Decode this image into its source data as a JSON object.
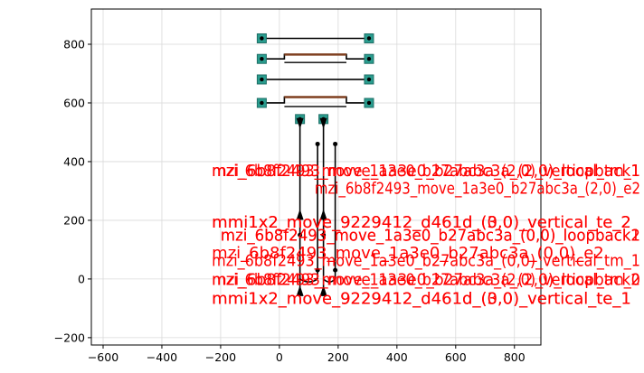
{
  "chart_data": {
    "type": "scatter",
    "title": "",
    "xlabel": "",
    "ylabel": "",
    "xlim": [
      -640,
      890
    ],
    "ylim": [
      -225,
      920
    ],
    "grid": true,
    "x_ticks": [
      -600,
      -400,
      -200,
      0,
      200,
      400,
      600,
      800
    ],
    "y_ticks": [
      -200,
      0,
      200,
      400,
      600,
      800
    ],
    "x_tick_labels": [
      "−600",
      "−400",
      "−200",
      "0",
      "200",
      "400",
      "600",
      "800"
    ],
    "y_tick_labels": [
      "−200",
      "0",
      "200",
      "400",
      "600",
      "800"
    ],
    "colors": {
      "grid": "#d9d9d9",
      "axis": "#000000",
      "waveguide": "#000000",
      "waveguide_fill": "#7f3f1f",
      "port_pad": "#2a9d8f",
      "port_pad_edge": "#1f6f66",
      "label": "#ff0000",
      "marker": "#000000",
      "zero_line": "#bfbfbf"
    },
    "structures": {
      "pads_left": [
        {
          "x": -60,
          "y": 820
        },
        {
          "x": -60,
          "y": 750
        },
        {
          "x": -60,
          "y": 680
        },
        {
          "x": -60,
          "y": 600
        }
      ],
      "pads_right": [
        {
          "x": 305,
          "y": 820
        },
        {
          "x": 305,
          "y": 750
        },
        {
          "x": 305,
          "y": 680
        },
        {
          "x": 305,
          "y": 600
        }
      ],
      "pads_bottom_top": [
        {
          "x": 70,
          "y": 545
        },
        {
          "x": 150,
          "y": 545
        }
      ],
      "loops": [
        {
          "x1": -60,
          "x2": 305,
          "y": 820,
          "dy": 0
        },
        {
          "x1": -60,
          "x2": 305,
          "y": 750,
          "dy": 15
        },
        {
          "x1": -60,
          "x2": 305,
          "y": 680,
          "dy": 0
        },
        {
          "x1": -60,
          "x2": 305,
          "y": 600,
          "dy": 20
        }
      ],
      "vertical_runs": [
        {
          "x": 70,
          "y1": 545,
          "y2": -40
        },
        {
          "x": 150,
          "y1": 545,
          "y2": -40
        },
        {
          "x": 130,
          "y1": 460,
          "y2": 0
        },
        {
          "x": 190,
          "y1": 460,
          "y2": 0
        }
      ],
      "arrows_down": [
        {
          "x": 70,
          "y": 530
        },
        {
          "x": 150,
          "y": 530
        }
      ],
      "arrows_up": [
        {
          "x": 70,
          "y": 220
        },
        {
          "x": 150,
          "y": 220
        },
        {
          "x": 70,
          "y": -40
        },
        {
          "x": 150,
          "y": -40
        }
      ],
      "dots": [
        {
          "x": 130,
          "y": 460
        },
        {
          "x": 190,
          "y": 460
        },
        {
          "x": 70,
          "y": 150
        },
        {
          "x": 150,
          "y": 150
        },
        {
          "x": 130,
          "y": 30
        },
        {
          "x": 190,
          "y": 30
        }
      ]
    },
    "labels": [
      {
        "text": "mzi_6b8f2493_move_1a3e0_b27abc3a_(2,0)_loopback1",
        "x": -230,
        "y": 350
      },
      {
        "text": "mzi_6b8f2493_move_1a3e0_b27abc3a_(2,0)_vertical_tm_1",
        "x": -230,
        "y": 350
      },
      {
        "text": "mzi_6b8f2493_move_1a3e0_b27abc3a_(2,0)_e2",
        "x": 120,
        "y": 290
      },
      {
        "text": "mmi1x2_move_9229412_d461d_(0,0)_vertical_te_2",
        "x": -230,
        "y": 175
      },
      {
        "text": "mmi1x2_move_9229412_d461d_(3,0)_vertical_te_2",
        "x": -230,
        "y": 175
      },
      {
        "text": "mzi_6b8f2493_move_1a3e0_b27abc3a_(0,0)_loopback2",
        "x": -200,
        "y": 130
      },
      {
        "text": "mzi_6b8f2493_move_1a3e0_b27abc3a_(0,0)_loopback1",
        "x": -200,
        "y": 130
      },
      {
        "text": "mzi_6b8f2493_move_1a3e0_b27abc3a_(0,0)_e2",
        "x": -230,
        "y": 70
      },
      {
        "text": "mzi_6b8f2493_move_1a3e0_b27abc3a_(0,0)_vertical_tm_1",
        "x": -230,
        "y": 45
      },
      {
        "text": "mzi_6b8f2493_move_1a3e0_b27abc3a_(2,0)_loopback2",
        "x": -230,
        "y": -20
      },
      {
        "text": "mzi_6b8f2493_move_1a3e0_b27abc3a_(2,0)_vertical_tm_0",
        "x": -230,
        "y": -20
      },
      {
        "text": "mmi1x2_move_9229412_d461d_(0,0)_vertical_te_1",
        "x": -230,
        "y": -85
      },
      {
        "text": "mmi1x2_move_9229412_d461d_(3,0)_vertical_te_1",
        "x": -230,
        "y": -85
      }
    ]
  }
}
